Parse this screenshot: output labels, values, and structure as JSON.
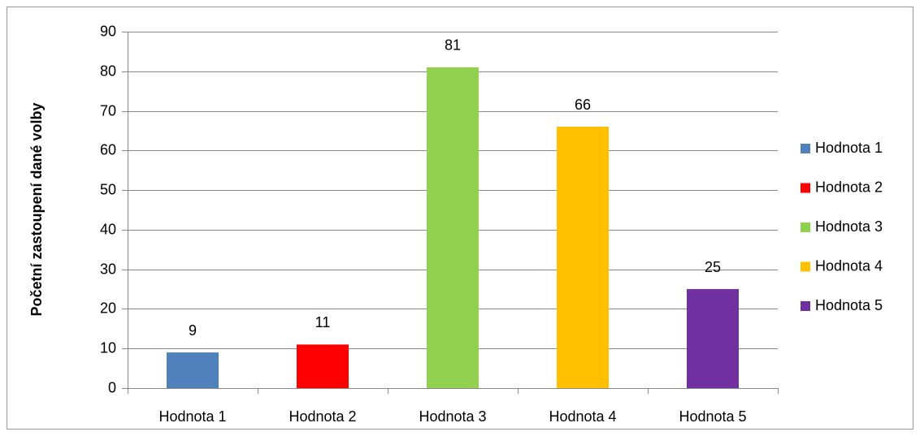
{
  "chart_data": {
    "type": "bar",
    "y_label": "Početní zastoupení dané  volby",
    "categories": [
      "Hodnota 1",
      "Hodnota 2",
      "Hodnota 3",
      "Hodnota 4",
      "Hodnota 5"
    ],
    "values": [
      9,
      11,
      81,
      66,
      25
    ],
    "colors": [
      "#4f81bd",
      "#ff0000",
      "#92d050",
      "#ffc000",
      "#7030a0"
    ],
    "ylim": [
      0,
      90
    ],
    "yticks": [
      0,
      10,
      20,
      30,
      40,
      50,
      60,
      70,
      80,
      90
    ],
    "grid": true,
    "legend": "right",
    "data_labels": true
  }
}
